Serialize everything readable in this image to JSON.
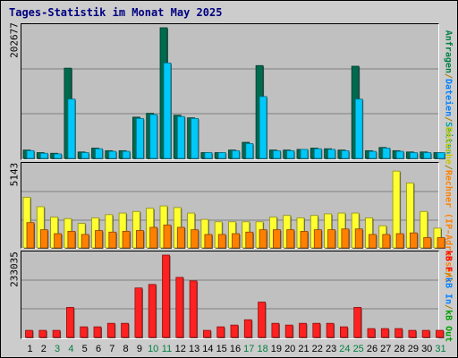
{
  "title": "Tages-Statistik im Monat May 2025",
  "legend_top": {
    "items": [
      {
        "text": "Anfragen",
        "color": "#008040"
      },
      {
        "text": "/",
        "color": "#a08000"
      },
      {
        "text": "Dateien",
        "color": "#0080ff"
      },
      {
        "text": "/",
        "color": "#a08000"
      },
      {
        "text": "Seiten",
        "color": "#00a0a0"
      }
    ]
  },
  "legend_middle": {
    "items": [
      {
        "text": "Besuche",
        "color": "#c8c800"
      },
      {
        "text": "/",
        "color": "#a08000"
      },
      {
        "text": "Rechner (IP-Adressen)",
        "color": "#ff8000"
      }
    ]
  },
  "legend_bottom": {
    "items": [
      {
        "text": "kB F",
        "color": "#ff0000"
      },
      {
        "text": "/",
        "color": "#a08000"
      },
      {
        "text": "kB In",
        "color": "#0080ff"
      },
      {
        "text": "/",
        "color": "#a08000"
      },
      {
        "text": "kB Out",
        "color": "#00a000"
      }
    ]
  },
  "chart_data": [
    {
      "type": "bar",
      "ymax_label": "202677",
      "ylim": [
        0,
        202677
      ],
      "categories": [
        "1",
        "2",
        "3",
        "4",
        "5",
        "6",
        "7",
        "8",
        "9",
        "10",
        "11",
        "12",
        "13",
        "14",
        "15",
        "16",
        "17",
        "18",
        "19",
        "20",
        "21",
        "22",
        "23",
        "24",
        "25",
        "26",
        "27",
        "28",
        "29",
        "30",
        "31"
      ],
      "weekend_days": [
        "3",
        "4",
        "10",
        "11",
        "17",
        "18",
        "24",
        "25",
        "31"
      ],
      "series": [
        {
          "name": "Anfragen",
          "color": "#006a4f",
          "values": [
            13000,
            9000,
            8000,
            140000,
            10000,
            16000,
            12000,
            12000,
            64000,
            70000,
            202677,
            67000,
            63000,
            9000,
            9000,
            13000,
            25000,
            144000,
            13000,
            13000,
            14000,
            16000,
            15000,
            13000,
            143000,
            12000,
            17000,
            12000,
            10000,
            10000,
            9000
          ]
        },
        {
          "name": "Dateien",
          "color": "#00c8f8",
          "values": [
            12000,
            8000,
            7000,
            92000,
            9000,
            15000,
            11000,
            11000,
            62000,
            68000,
            148000,
            65000,
            62000,
            9000,
            9000,
            12000,
            23000,
            96000,
            12000,
            12000,
            14000,
            15000,
            14000,
            12000,
            92000,
            11000,
            16000,
            11000,
            9000,
            9000,
            9000
          ]
        }
      ]
    },
    {
      "type": "bar",
      "ymax_label": "5143",
      "ylim": [
        0,
        5143
      ],
      "categories": [
        "1",
        "2",
        "3",
        "4",
        "5",
        "6",
        "7",
        "8",
        "9",
        "10",
        "11",
        "12",
        "13",
        "14",
        "15",
        "16",
        "17",
        "18",
        "19",
        "20",
        "21",
        "22",
        "23",
        "24",
        "25",
        "26",
        "27",
        "28",
        "29",
        "30",
        "31"
      ],
      "series": [
        {
          "name": "Besuche",
          "color": "#ffff30",
          "values": [
            3200,
            2600,
            1950,
            1850,
            1550,
            1900,
            2100,
            2200,
            2300,
            2500,
            2650,
            2550,
            2200,
            1800,
            1650,
            1650,
            1650,
            1650,
            1950,
            2050,
            1900,
            2050,
            2150,
            2200,
            2200,
            1900,
            1400,
            4850,
            4100,
            2300,
            1250
          ]
        },
        {
          "name": "Rechner",
          "color": "#ff8000",
          "values": [
            1600,
            1150,
            900,
            1050,
            850,
            1100,
            1000,
            1050,
            1100,
            1300,
            1450,
            1300,
            1150,
            850,
            850,
            900,
            1000,
            1150,
            1150,
            1150,
            1050,
            1150,
            1150,
            1200,
            1200,
            850,
            850,
            900,
            950,
            650,
            650
          ]
        }
      ]
    },
    {
      "type": "bar",
      "ymax_label": "233035",
      "ylim": [
        0,
        233035
      ],
      "categories": [
        "1",
        "2",
        "3",
        "4",
        "5",
        "6",
        "7",
        "8",
        "9",
        "10",
        "11",
        "12",
        "13",
        "14",
        "15",
        "16",
        "17",
        "18",
        "19",
        "20",
        "21",
        "22",
        "23",
        "24",
        "25",
        "26",
        "27",
        "28",
        "29",
        "30",
        "31"
      ],
      "series": [
        {
          "name": "kB F",
          "color": "#ff2020",
          "values": [
            20000,
            20000,
            20000,
            85000,
            30000,
            30000,
            40000,
            40000,
            140000,
            150000,
            233035,
            170000,
            160000,
            20000,
            30000,
            35000,
            50000,
            100000,
            40000,
            35000,
            40000,
            40000,
            40000,
            30000,
            85000,
            25000,
            25000,
            25000,
            20000,
            20000,
            20000
          ]
        }
      ]
    }
  ]
}
